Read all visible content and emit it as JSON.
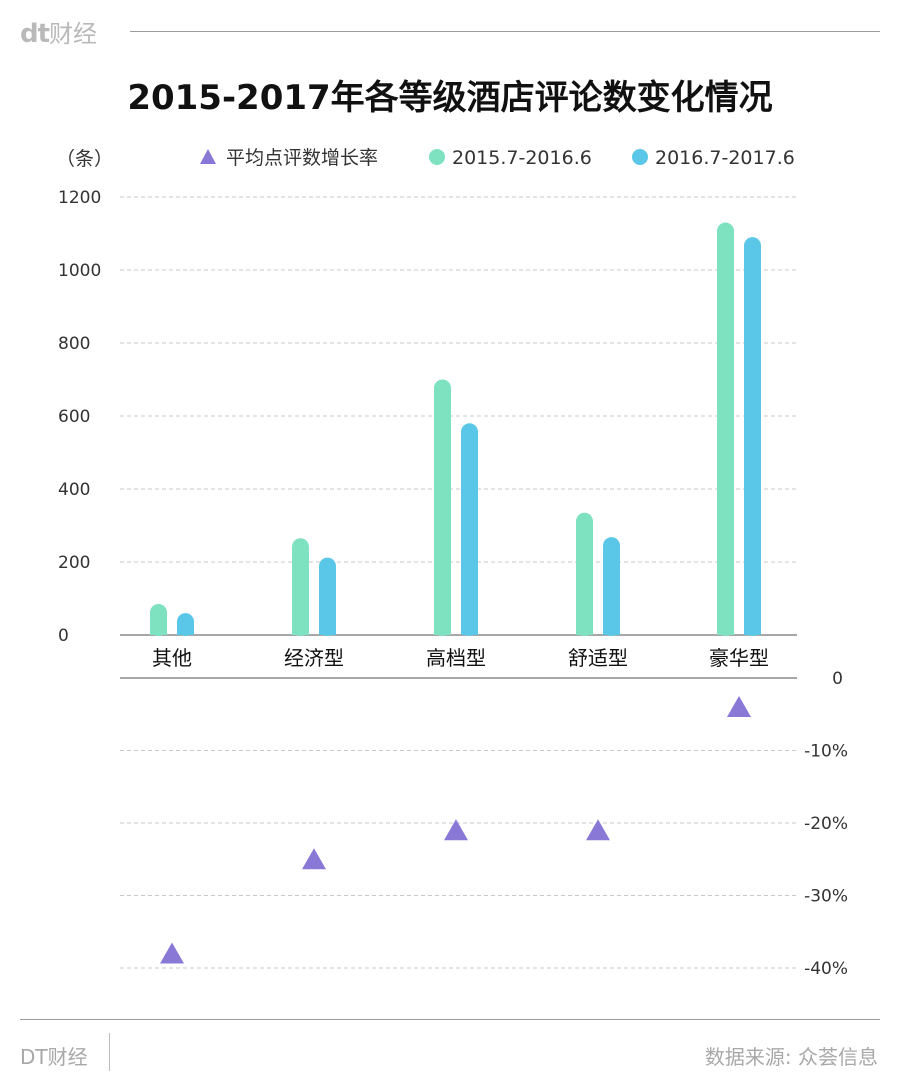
{
  "brand": {
    "logo_mark": "dt",
    "logo_text": "财经",
    "footer_left": "DT财经",
    "source": "数据来源: 众荟信息"
  },
  "colors": {
    "series_2015": "#7ee1c0",
    "series_2016": "#5bc7e8",
    "triangle": "#8a78d6",
    "grid": "#c8c8c8",
    "axis": "#8a8a8a"
  },
  "chart_data": {
    "type": "bar",
    "title": "2015-2017年各等级酒店评论数变化情况",
    "ylabel": "（条）",
    "categories": [
      "其他",
      "经济型",
      "高档型",
      "舒适型",
      "豪华型"
    ],
    "ylim": [
      0,
      1200
    ],
    "yticks": [
      "0",
      "200",
      "400",
      "600",
      "800",
      "1000",
      "1200"
    ],
    "legend": [
      "平均点评数增长率",
      "2015.7-2016.6",
      "2016.7-2017.6"
    ],
    "series": [
      {
        "name": "2015.7-2016.6",
        "values": [
          85,
          265,
          700,
          335,
          1130
        ]
      },
      {
        "name": "2016.7-2017.6",
        "values": [
          60,
          212,
          580,
          268,
          1090
        ]
      }
    ],
    "growth": {
      "name": "平均点评数增长率",
      "type": "scatter",
      "unit": "%",
      "values": [
        -38,
        -25,
        -21,
        -21,
        -4
      ],
      "ylim": [
        -40,
        0
      ],
      "yticks": [
        "0",
        "-10%",
        "-20%",
        "-30%",
        "-40%"
      ]
    }
  }
}
